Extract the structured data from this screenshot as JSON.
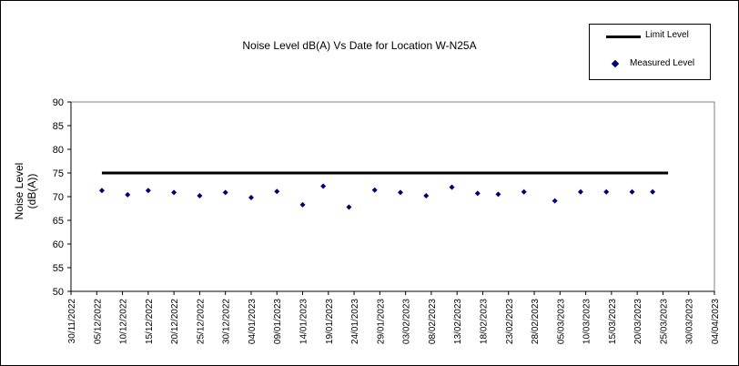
{
  "chart_data": {
    "type": "scatter",
    "title": "Noise Level dB(A) Vs Date for Location W-N25A",
    "ylabel": "Noise Level\n(dB(A))",
    "xlabel": "",
    "ylim": [
      50,
      90
    ],
    "yticks": [
      50,
      55,
      60,
      65,
      70,
      75,
      80,
      85,
      90
    ],
    "xlim": [
      "30/11/2022",
      "04/04/2023"
    ],
    "xticks": [
      "30/11/2022",
      "05/12/2022",
      "10/12/2022",
      "15/12/2022",
      "20/12/2022",
      "25/12/2022",
      "30/12/2022",
      "04/01/2023",
      "09/01/2023",
      "14/01/2023",
      "19/01/2023",
      "24/01/2023",
      "29/01/2023",
      "03/02/2023",
      "08/02/2023",
      "13/02/2023",
      "18/02/2023",
      "23/02/2023",
      "28/02/2023",
      "05/03/2023",
      "10/03/2023",
      "15/03/2023",
      "20/03/2023",
      "25/03/2023",
      "30/03/2023",
      "04/04/2023"
    ],
    "grid": false,
    "legend_position": "top-right",
    "series": [
      {
        "name": "Limit Level",
        "style": "line",
        "color": "#000000",
        "x": [
          "06/12/2022",
          "26/03/2023"
        ],
        "y": [
          75,
          75
        ]
      },
      {
        "name": "Measured Level",
        "style": "marker",
        "color": "#00007a",
        "x": [
          "06/12/2022",
          "11/12/2022",
          "15/12/2022",
          "20/12/2022",
          "25/12/2022",
          "30/12/2022",
          "04/01/2023",
          "09/01/2023",
          "14/01/2023",
          "18/01/2023",
          "23/01/2023",
          "28/01/2023",
          "02/02/2023",
          "07/02/2023",
          "12/02/2023",
          "17/02/2023",
          "21/02/2023",
          "26/02/2023",
          "04/03/2023",
          "09/03/2023",
          "14/03/2023",
          "19/03/2023",
          "23/03/2023"
        ],
        "y": [
          71.3,
          70.4,
          71.3,
          70.9,
          70.2,
          70.9,
          69.8,
          71.1,
          68.3,
          72.2,
          67.8,
          71.4,
          70.9,
          70.2,
          72.0,
          70.7,
          70.5,
          71.0,
          69.1,
          71.0,
          71.0,
          71.0,
          71.0
        ]
      }
    ]
  }
}
